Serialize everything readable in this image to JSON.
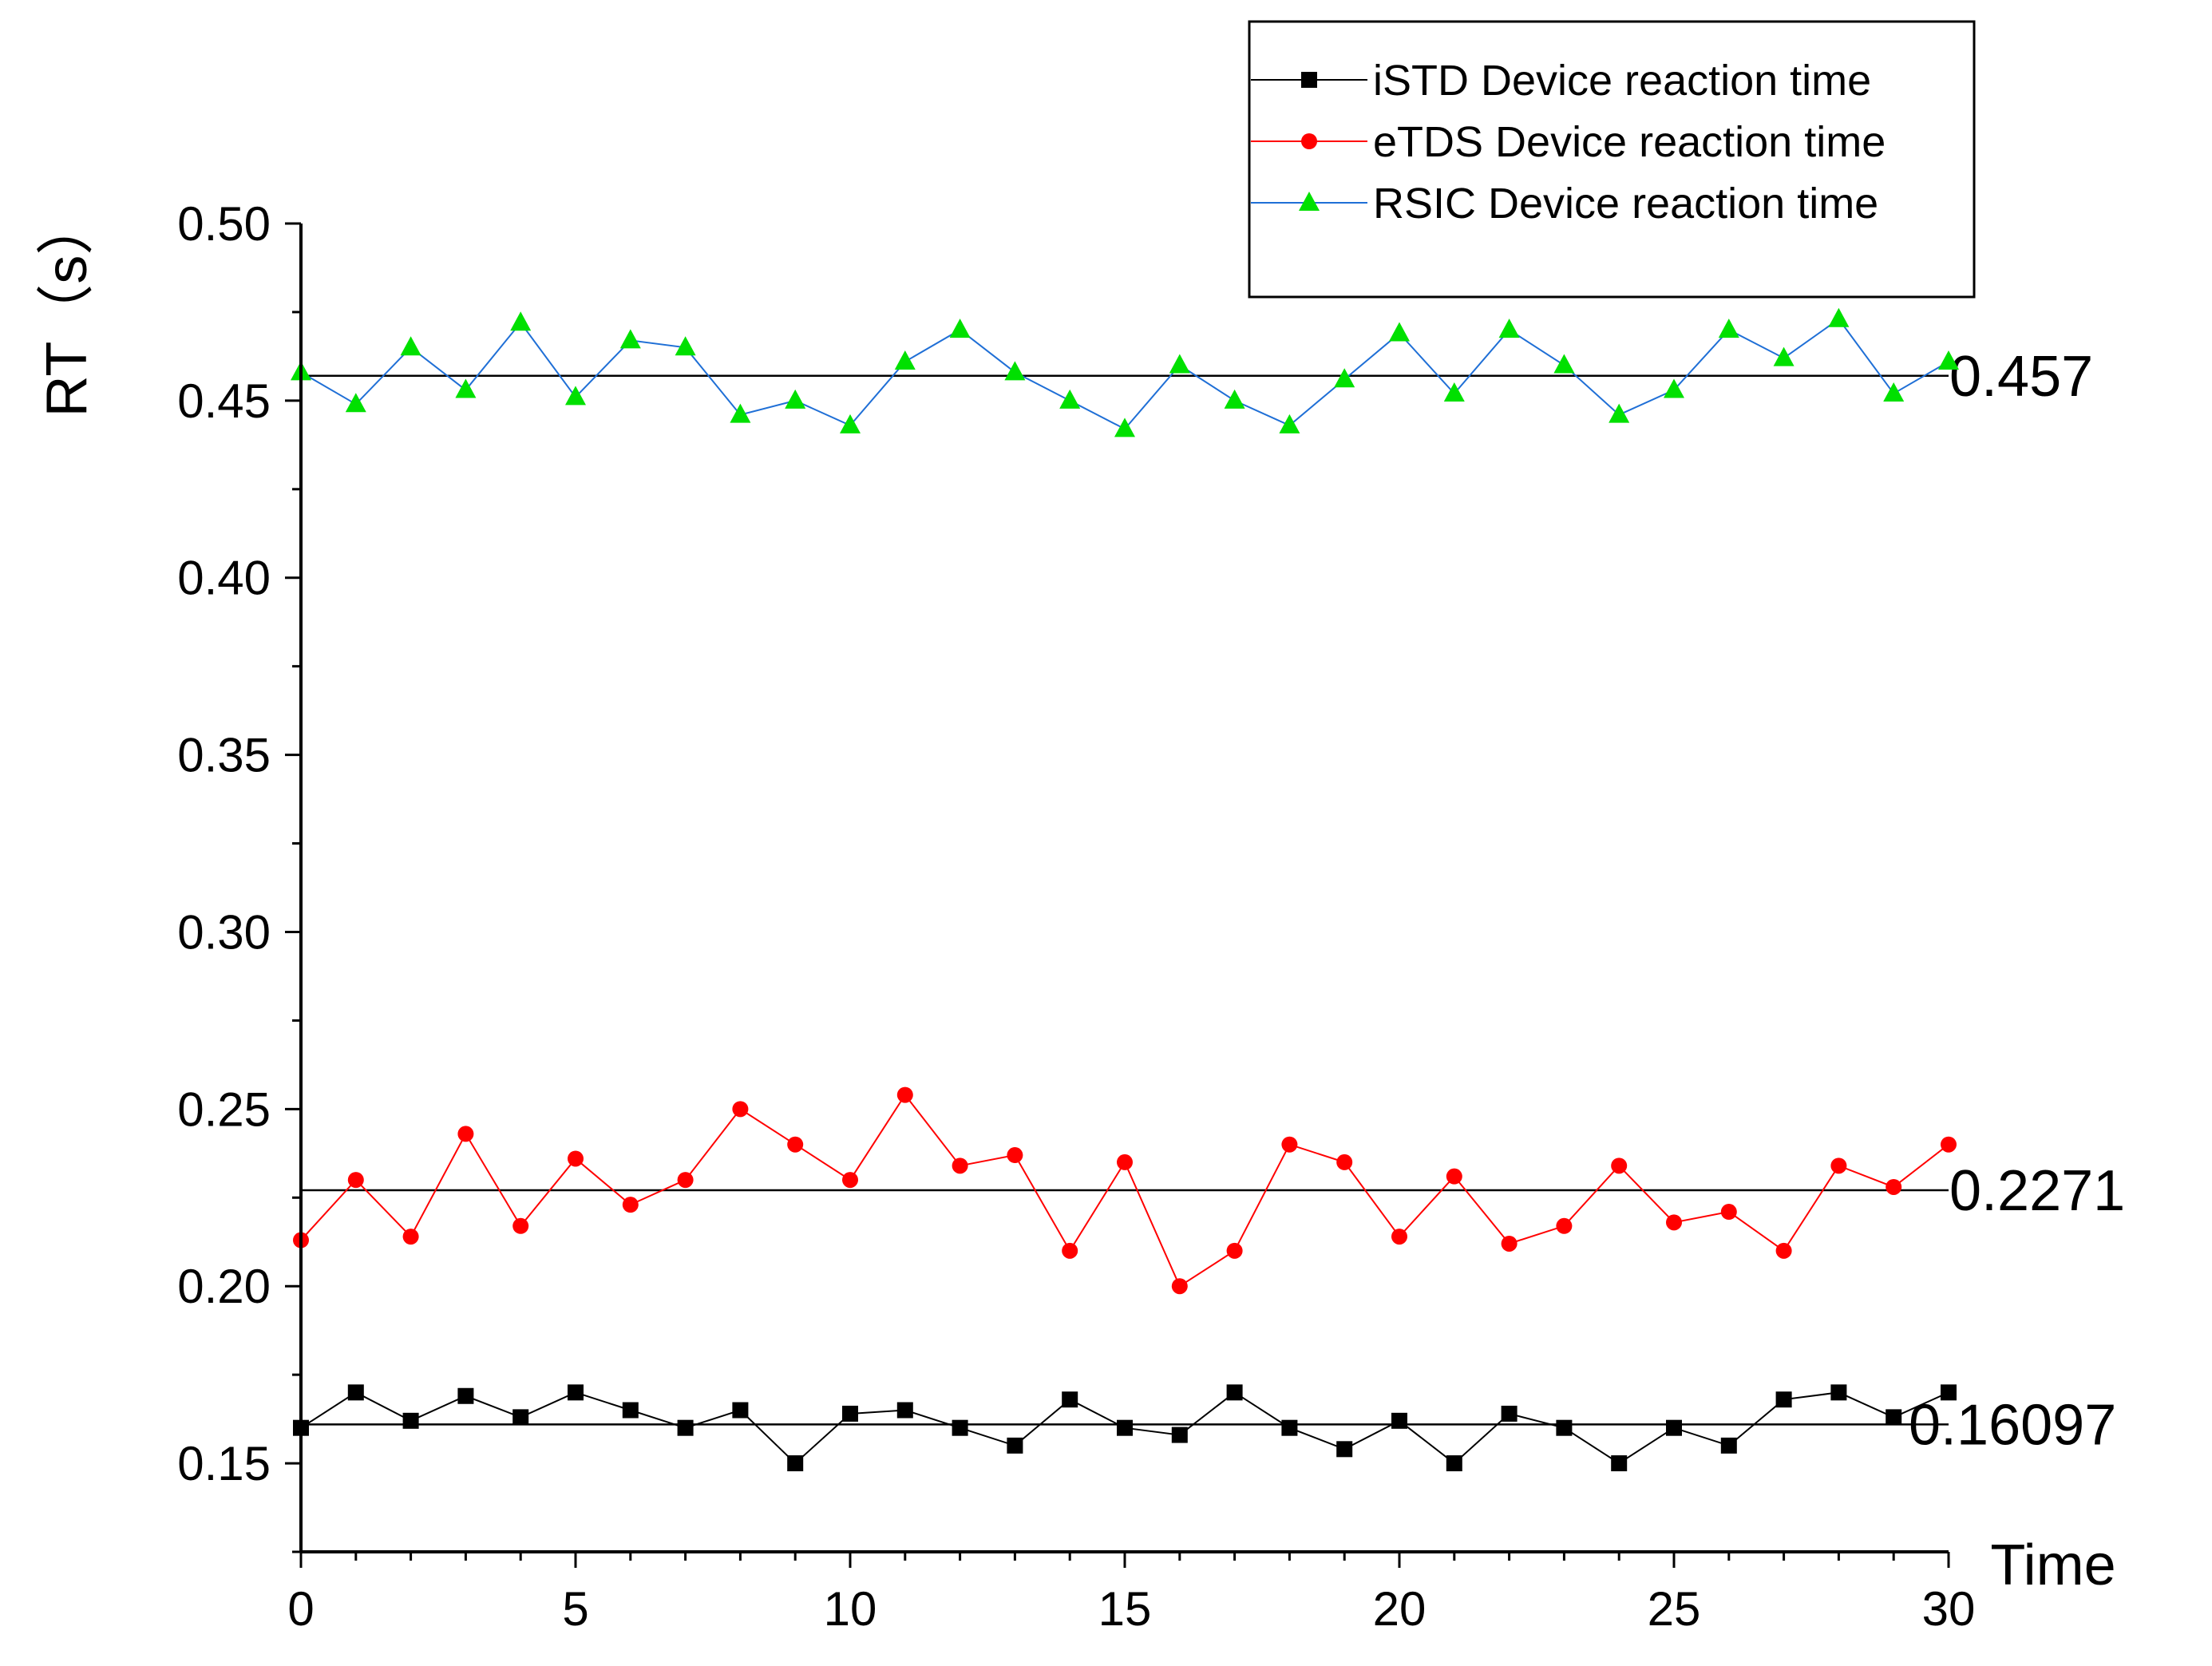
{
  "chart_data": {
    "type": "line",
    "title": "",
    "xlabel": "Time",
    "ylabel": "RT（s）",
    "xlim": [
      0,
      30
    ],
    "ylim": [
      0.125,
      0.5
    ],
    "x_ticks": [
      "0",
      "5",
      "10",
      "15",
      "20",
      "25",
      "30"
    ],
    "y_ticks": [
      "0.15",
      "0.20",
      "0.25",
      "0.30",
      "0.35",
      "0.40",
      "0.45",
      "0.50"
    ],
    "x_tick_values": [
      0,
      5,
      10,
      15,
      20,
      25,
      30
    ],
    "y_tick_values": [
      0.15,
      0.2,
      0.25,
      0.3,
      0.35,
      0.4,
      0.45,
      0.5
    ],
    "grid": false,
    "legend_position": "top-right",
    "x": [
      0,
      1,
      2,
      3,
      4,
      5,
      6,
      7,
      8,
      9,
      10,
      11,
      12,
      13,
      14,
      15,
      16,
      17,
      18,
      19,
      20,
      21,
      22,
      23,
      24,
      25,
      26,
      27,
      28,
      29,
      30
    ],
    "series": [
      {
        "name": "iSTD Device reaction time",
        "color": "#000000",
        "marker": "square",
        "values": [
          0.16,
          0.17,
          0.162,
          0.169,
          0.163,
          0.17,
          0.165,
          0.16,
          0.165,
          0.15,
          0.164,
          0.165,
          0.16,
          0.155,
          0.168,
          0.16,
          0.158,
          0.17,
          0.16,
          0.154,
          0.162,
          0.15,
          0.164,
          0.16,
          0.15,
          0.16,
          0.155,
          0.168,
          0.17,
          0.163,
          0.17
        ]
      },
      {
        "name": "eTDS Device reaction time",
        "color": "#ff0000",
        "marker": "circle",
        "values": [
          0.213,
          0.23,
          0.214,
          0.243,
          0.217,
          0.236,
          0.223,
          0.23,
          0.25,
          0.24,
          0.23,
          0.254,
          0.234,
          0.237,
          0.21,
          0.235,
          0.2,
          0.21,
          0.24,
          0.235,
          0.214,
          0.231,
          0.212,
          0.217,
          0.234,
          0.218,
          0.221,
          0.21,
          0.234,
          0.228,
          0.24
        ]
      },
      {
        "name": "RSIC Device reaction time",
        "color": "#1f6fd6",
        "marker_color": "#00e000",
        "marker": "triangle",
        "values": [
          0.458,
          0.449,
          0.465,
          0.453,
          0.472,
          0.451,
          0.467,
          0.465,
          0.446,
          0.45,
          0.443,
          0.461,
          0.47,
          0.458,
          0.45,
          0.442,
          0.46,
          0.45,
          0.443,
          0.456,
          0.469,
          0.452,
          0.47,
          0.46,
          0.446,
          0.453,
          0.47,
          0.462,
          0.473,
          0.452,
          0.461
        ]
      }
    ],
    "reference_lines": [
      {
        "value": 0.457,
        "label": "0.457"
      },
      {
        "value": 0.2271,
        "label": "0.2271"
      },
      {
        "value": 0.16097,
        "label": "0.16097"
      }
    ]
  }
}
